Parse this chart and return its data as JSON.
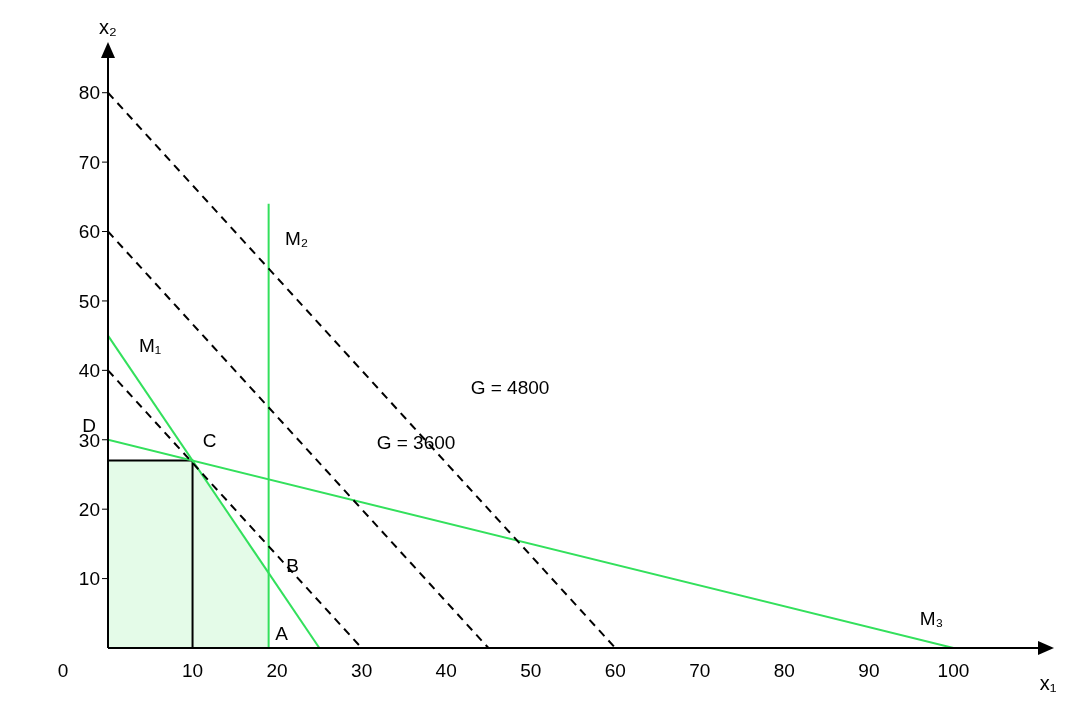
{
  "chart_data": {
    "type": "line",
    "xlabel": "x₁",
    "ylabel": "x₂",
    "xlim": [
      0,
      110
    ],
    "ylim": [
      0,
      85
    ],
    "xticks": [
      10,
      20,
      30,
      40,
      50,
      60,
      70,
      80,
      90,
      100
    ],
    "yticks": [
      10,
      20,
      30,
      40,
      50,
      60,
      70,
      80
    ],
    "marker": "none",
    "series": [
      {
        "type": "area",
        "color": "#e4fbe8",
        "x": [
          0,
          10,
          19,
          19
        ],
        "values": [
          27,
          27,
          10.8,
          0
        ]
      },
      {
        "color": "#000000",
        "x": [
          0,
          10,
          10
        ],
        "values": [
          27,
          27,
          0
        ]
      },
      {
        "color": "#33e05c",
        "x": [
          0,
          25
        ],
        "values": [
          45,
          0
        ]
      },
      {
        "color": "#33e05c",
        "x": [
          19,
          19
        ],
        "values": [
          0,
          64
        ]
      },
      {
        "color": "#33e05c",
        "x": [
          0,
          100
        ],
        "values": [
          30,
          0
        ]
      },
      {
        "color": "#000000",
        "line_style": "dashed",
        "x": [
          0,
          30
        ],
        "values": [
          40,
          0
        ]
      },
      {
        "color": "#000000",
        "line_style": "dashed",
        "x": [
          0,
          45
        ],
        "values": [
          60,
          0
        ]
      },
      {
        "color": "#000000",
        "line_style": "dashed",
        "x": [
          0,
          60
        ],
        "values": [
          80,
          0
        ]
      }
    ],
    "annotations": [
      {
        "text": "M₁",
        "x": 0,
        "y": 45
      },
      {
        "text": "M₂",
        "x": 19,
        "y": 64
      },
      {
        "text": "M₃",
        "x": 100,
        "y": 0
      },
      {
        "text": "A",
        "x": 19,
        "y": 0
      },
      {
        "text": "B",
        "x": 19,
        "y": 10.8
      },
      {
        "text": "C",
        "x": 10,
        "y": 27
      },
      {
        "text": "D",
        "x": 0,
        "y": 30
      },
      "G  =  3600",
      "G  =  4800",
      "0"
    ]
  }
}
